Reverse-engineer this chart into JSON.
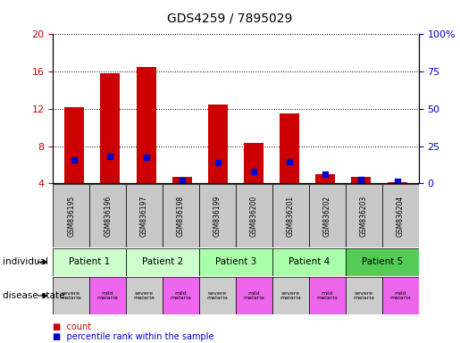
{
  "title": "GDS4259 / 7895029",
  "samples": [
    "GSM836195",
    "GSM836196",
    "GSM836197",
    "GSM836198",
    "GSM836199",
    "GSM836200",
    "GSM836201",
    "GSM836202",
    "GSM836203",
    "GSM836204"
  ],
  "count_values": [
    12.2,
    15.8,
    16.5,
    4.7,
    12.5,
    8.4,
    11.5,
    5.0,
    4.7,
    4.1
  ],
  "percentile_values": [
    6.5,
    6.9,
    6.8,
    4.3,
    6.2,
    5.3,
    6.3,
    5.0,
    4.4,
    4.2
  ],
  "bar_color": "#cc0000",
  "blue_color": "#0000cc",
  "ylim_left": [
    4,
    20
  ],
  "ylim_right": [
    0,
    100
  ],
  "yticks_left": [
    4,
    8,
    12,
    16,
    20
  ],
  "yticks_right": [
    0,
    25,
    50,
    75,
    100
  ],
  "patients": [
    "Patient 1",
    "Patient 2",
    "Patient 3",
    "Patient 4",
    "Patient 5"
  ],
  "patient_colors": [
    "#ccffcc",
    "#ccffcc",
    "#aaffaa",
    "#aaffaa",
    "#55cc55"
  ],
  "disease_severe_color": "#cccccc",
  "disease_mild_color": "#ee66ee",
  "individual_row_label": "individual",
  "disease_row_label": "disease state",
  "legend_count": "count",
  "legend_percentile": "percentile rank within the sample",
  "bar_color_red": "#cc0000",
  "ylabel_right_color": "#0000cc",
  "grid_color": "#000000"
}
